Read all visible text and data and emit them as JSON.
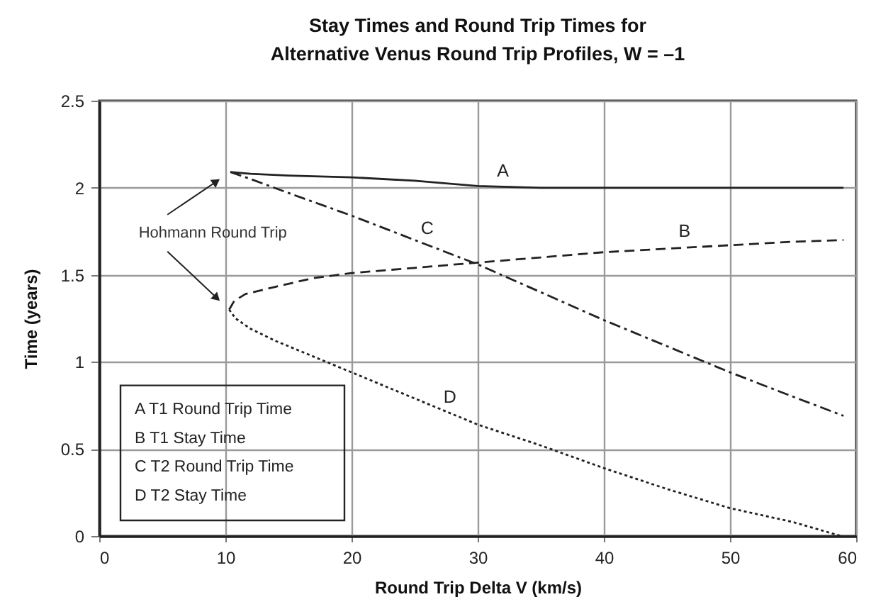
{
  "chart_data": {
    "type": "line",
    "title": "Stay Times and Round Trip Times for Alternative Venus Round Trip Profiles, W = –1",
    "xlabel": "Round Trip Delta V (km/s)",
    "ylabel": "Time (years)",
    "xlim": [
      0,
      60
    ],
    "xticks": [
      0,
      10,
      20,
      30,
      40,
      50,
      60
    ],
    "ylim": [
      0,
      2.5
    ],
    "yticks": [
      0,
      0.5,
      1,
      1.5,
      2,
      2.5
    ],
    "grid": true,
    "series": [
      {
        "color": "#222222",
        "line_style": "solid",
        "x": [
          10.4,
          12,
          15,
          20,
          25,
          30,
          35,
          40,
          50,
          59
        ],
        "values": [
          2.09,
          2.08,
          2.07,
          2.06,
          2.04,
          2.01,
          2.0,
          2.0,
          2.0,
          2.0
        ]
      },
      {
        "color": "#222222",
        "line_style": "dashed",
        "x": [
          10.3,
          10.7,
          11.6,
          13.9,
          16.9,
          20,
          25,
          30,
          35,
          40,
          45,
          50,
          55,
          59
        ],
        "values": [
          1.3,
          1.35,
          1.39,
          1.43,
          1.48,
          1.51,
          1.54,
          1.57,
          1.6,
          1.63,
          1.65,
          1.67,
          1.69,
          1.7
        ]
      },
      {
        "color": "#222222",
        "line_style": "dashdot",
        "x": [
          10.4,
          12,
          15,
          20,
          25,
          30,
          35,
          40,
          45,
          50,
          55,
          59
        ],
        "values": [
          2.09,
          2.05,
          1.97,
          1.84,
          1.7,
          1.56,
          1.4,
          1.24,
          1.09,
          0.94,
          0.8,
          0.69
        ]
      },
      {
        "color": "#222222",
        "line_style": "dotted",
        "x": [
          10.3,
          10.8,
          12,
          14,
          16,
          18,
          20,
          25,
          30,
          35,
          40,
          45,
          50,
          55,
          58.8
        ],
        "values": [
          1.3,
          1.25,
          1.19,
          1.12,
          1.06,
          1.0,
          0.94,
          0.79,
          0.64,
          0.52,
          0.39,
          0.27,
          0.16,
          0.08,
          0.0
        ]
      }
    ],
    "annotations": [
      {
        "text": "A",
        "x": 32,
        "y": 2.0
      },
      {
        "text": "B",
        "x": 46.4,
        "y": 1.655
      },
      {
        "text": "C",
        "x": 26,
        "y": 1.67
      },
      {
        "text": "D",
        "x": 27.8,
        "y": 0.7
      },
      "Hohmann Round Trip",
      "A T1 Round Trip Time",
      "B T1 Stay Time",
      "C T2 Round Trip Time",
      "D T2 Stay Time"
    ]
  }
}
